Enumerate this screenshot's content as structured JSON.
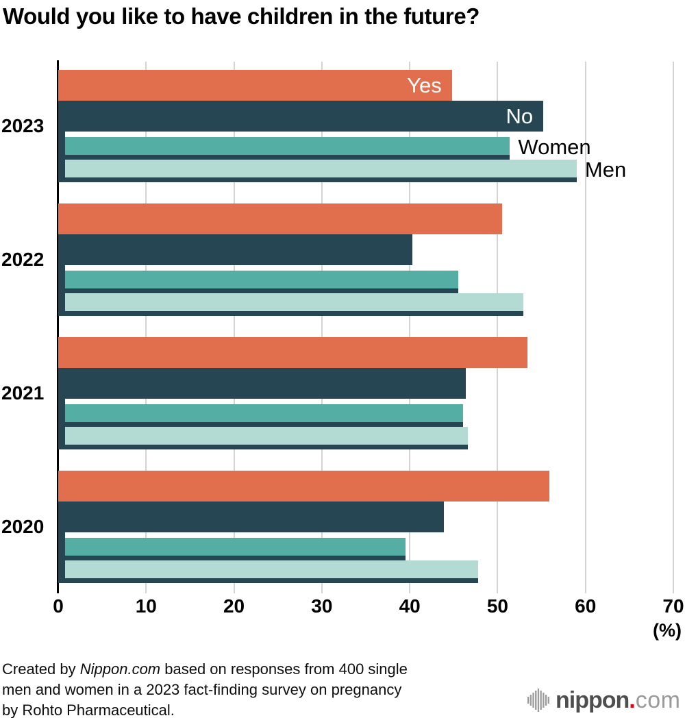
{
  "title": "Would you like to have children in the future?",
  "chart_data": {
    "type": "bar",
    "orientation": "horizontal",
    "title": "Would you like to have children in the future?",
    "categories": [
      "2023",
      "2022",
      "2021",
      "2020"
    ],
    "series": [
      {
        "name": "Yes",
        "color": "#E16F4D",
        "label_color": "#FFFFFF",
        "label_inside": true,
        "values": [
          44.8,
          50.5,
          53.4,
          55.9
        ]
      },
      {
        "name": "No",
        "color": "#264653",
        "label_color": "#FFFFFF",
        "label_inside": true,
        "values": [
          55.2,
          40.3,
          46.4,
          43.9
        ]
      },
      {
        "name": "Women",
        "color": "#54AEA3",
        "label_color": "#000000",
        "label_inside": false,
        "values": [
          51.4,
          45.5,
          46.1,
          39.5
        ]
      },
      {
        "name": "Men",
        "color": "#B4DAD4",
        "label_color": "#000000",
        "label_inside": false,
        "values": [
          59.0,
          52.9,
          46.6,
          47.8
        ]
      }
    ],
    "xlim": [
      0,
      70
    ],
    "xticks": [
      0,
      10,
      20,
      30,
      40,
      50,
      60,
      70
    ],
    "x_unit_label": "(%)",
    "grid": true,
    "legend_position": "labels on first (2023) bar group",
    "accent_shadow_color": "#264653",
    "gridline_color": "#D3D3D3"
  },
  "footer": {
    "line1_prefix": "Created by ",
    "brand": "Nippon.com",
    "line1_suffix": " based on responses from 400 single",
    "line2": "men and women in a 2023 fact-finding survey on pregnancy",
    "line3": "by Rohto Pharmaceutical."
  },
  "logo": {
    "name": "nippon",
    "dot": ".",
    "tld": "com"
  }
}
